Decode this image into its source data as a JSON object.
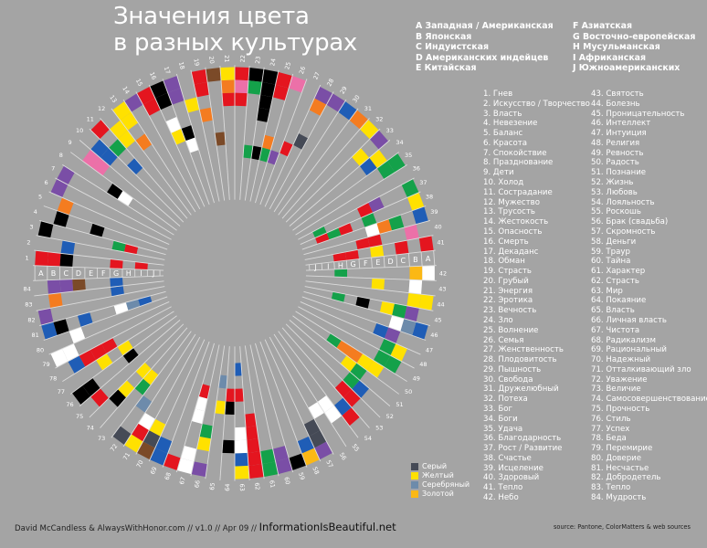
{
  "title": {
    "line1": "Значения цвета",
    "line2": "в разных культурах"
  },
  "cultures": [
    {
      "letter": "A",
      "label": "A Западная / Американская"
    },
    {
      "letter": "B",
      "label": "B Японская"
    },
    {
      "letter": "C",
      "label": "C Индуистская"
    },
    {
      "letter": "D",
      "label": "D Американских индейцев"
    },
    {
      "letter": "E",
      "label": "E Китайская"
    },
    {
      "letter": "F",
      "label": "F Азиатская"
    },
    {
      "letter": "G",
      "label": "G Восточно-европейская"
    },
    {
      "letter": "H",
      "label": "H Мусульманская"
    },
    {
      "letter": "I",
      "label": "I Африканская"
    },
    {
      "letter": "J",
      "label": "J Южноамериканских"
    }
  ],
  "meanings": [
    "1. Гнев",
    "2. Искусство / Творчество",
    "3. Власть",
    "4. Невезение",
    "5. Баланс",
    "6. Красота",
    "7. Спокойствие",
    "8. Празднование",
    "9. Дети",
    "10. Холод",
    "11. Сострадание",
    "12. Мужество",
    "13. Трусость",
    "14. Жестокость",
    "15. Опасность",
    "16. Смерть",
    "17. Декаданс",
    "18. Обман",
    "19. Страсть",
    "20. Грубый",
    "21. Энергия",
    "22. Эротика",
    "23. Вечность",
    "24. Зло",
    "25. Волнение",
    "26. Семья",
    "27. Женственность",
    "28. Плодовитость",
    "29. Пышность",
    "30. Свобода",
    "31. Дружелюбный",
    "32. Потеха",
    "33. Бог",
    "34. Боги",
    "35. Удача",
    "36. Благодарность",
    "37. Рост / Развитие",
    "38. Счастье",
    "39. Исцеление",
    "40. Здоровый",
    "41. Тепло",
    "42. Небо",
    "43. Святость",
    "44. Болезнь",
    "45. Проницательность",
    "46. Интеллект",
    "47. Интуиция",
    "48. Религия",
    "49. Ревность",
    "50. Радость",
    "51. Познание",
    "52. Жизнь",
    "53. Любовь",
    "54. Лояльность",
    "55. Роскошь",
    "56. Брак (свадьба)",
    "57. Скромность",
    "58. Деньги",
    "59. Траур",
    "60. Тайна",
    "61. Характер",
    "62. Страсть",
    "63. Мир",
    "64. Покаяние",
    "65. Власть",
    "66. Личная власть",
    "67. Чистота",
    "68. Радикализм",
    "69. Рациональный",
    "70. Надежный",
    "71. Отталкивающий зло",
    "72. Уважение",
    "73. Величие",
    "74. Самосовершенствование",
    "75. Прочность",
    "76. Стиль",
    "77. Успех",
    "78. Беда",
    "79. Перемирие",
    "80. Доверие",
    "81. Несчастье",
    "82. Добродетель",
    "83. Тепло",
    "84. Мудрость"
  ],
  "palette": {
    "R": "#e4151f",
    "K": "#000000",
    "W": "#ffffff",
    "Y": "#ffe100",
    "O": "#f47c20",
    "G": "#14a14a",
    "B": "#1f5db6",
    "P": "#7a4ea6",
    "M": "#ec70a8",
    "N": "#7b4a28",
    "S": "#6d8bab",
    "D": "#454a56",
    "A": "#fbb815"
  },
  "legend": [
    {
      "label": "Серый",
      "color": "#454a56"
    },
    {
      "label": "Желтый",
      "color": "#ffe100"
    },
    {
      "label": "Серебряный",
      "color": "#6d8bab"
    },
    {
      "label": "Золотой",
      "color": "#fbb815"
    }
  ],
  "chart_data": {
    "type": "radial-grid",
    "rings": [
      "A",
      "B",
      "C",
      "D",
      "E",
      "F",
      "G",
      "H",
      "I",
      "J"
    ],
    "items": {
      "1": "0R 1R 2K 6R 8R",
      "2": "2B",
      "3": "0K 6G 7R",
      "4": "1K 4K",
      "5": "1O",
      "6": "0P",
      "7": "0P",
      "8": "4K 5W",
      "9": "1M 2M",
      "10": "1B 2B",
      "11": "0R 2G 4B",
      "12": "1Y 2Y",
      "13": "0Y 1Y 3O",
      "14": "0P",
      "15": "0R 1R",
      "16": "0K 1K 3W 4Y",
      "17": "0P 1P 4K 5W",
      "18": "2Y",
      "19": "0R 1R 3O",
      "20": "0N 5N",
      "21": "0Y 1O 2R",
      "22": "0R 1M 2R",
      "23": "0K 1G 6G",
      "24": "0K 1K 2K 3K 6K",
      "25": "0R 1R 5O 6G",
      "26": "0M 6P",
      "27": "5R",
      "28": "0P 1O 4D",
      "29": "0P",
      "30": "0B",
      "31": "0O",
      "32": "0Y",
      "33": "0P 2Y",
      "34": "1Y 2B",
      "35": "0G 1G",
      "37": "0G 3P 4R 8G",
      "38": "0Y 4G 6R 7G 8R",
      "39": "0B 2G 3O 4W",
      "40": "1M 4R 5R",
      "41": "0R 2R 4Y 6R 7R",
      "42": "0W 1A 7G",
      "43": "1W 4Y",
      "44": "0Y 1Y",
      "45": "1P 2G 3Y 5K 7G",
      "46": "0B 1S 2W",
      "47": "2P 3B",
      "48": "1Y 2G",
      "49": "1G 2G",
      "50": "2Y 3Y 4O 5O 6G",
      "51": "3G 4Y",
      "52": "2B 3G",
      "53": "2R 3R",
      "54": "1R 2B",
      "55": "2W 3W",
      "56": "3W",
      "57": "0P 1D 2D",
      "58": "0A 1B",
      "59": "0K",
      "60": "0P 1P",
      "61": "0G 1G",
      "62": "0R 1R 2R 3R 4R",
      "63": "0Y 1B 2W 3W 6R 8B",
      "64": "2K 5K 6R",
      "65": "5Y 7S",
      "66": "0P 2Y 3G",
      "67": "0W 1W 4W 5W 6R",
      "68": "0R",
      "69": "0B 1B",
      "70": "0N 1D 2Y",
      "71": "0Y 1R 2W",
      "72": "0D 3S",
      "73": "4G 5Y",
      "74": "2K 3Y 5Y",
      "75": "1R",
      "76": "0K 1K 5K",
      "77": "3Y 5Y",
      "78": "1B 2R 3R 4R",
      "79": "0W 1W",
      "80": "2W",
      "81": "0B 1K 3B 6W 7S 8B",
      "82": "0P",
      "83": "1O 6B",
      "84": "1P 2P 3N 6B"
    }
  },
  "footer": {
    "credit": "David McCandless & AlwaysWithHonor.com  // v1.0 // Apr 09 // ",
    "brand": "InformationIsBeautiful.net",
    "source": "source: Pantone, ColorMatters & web sources"
  }
}
